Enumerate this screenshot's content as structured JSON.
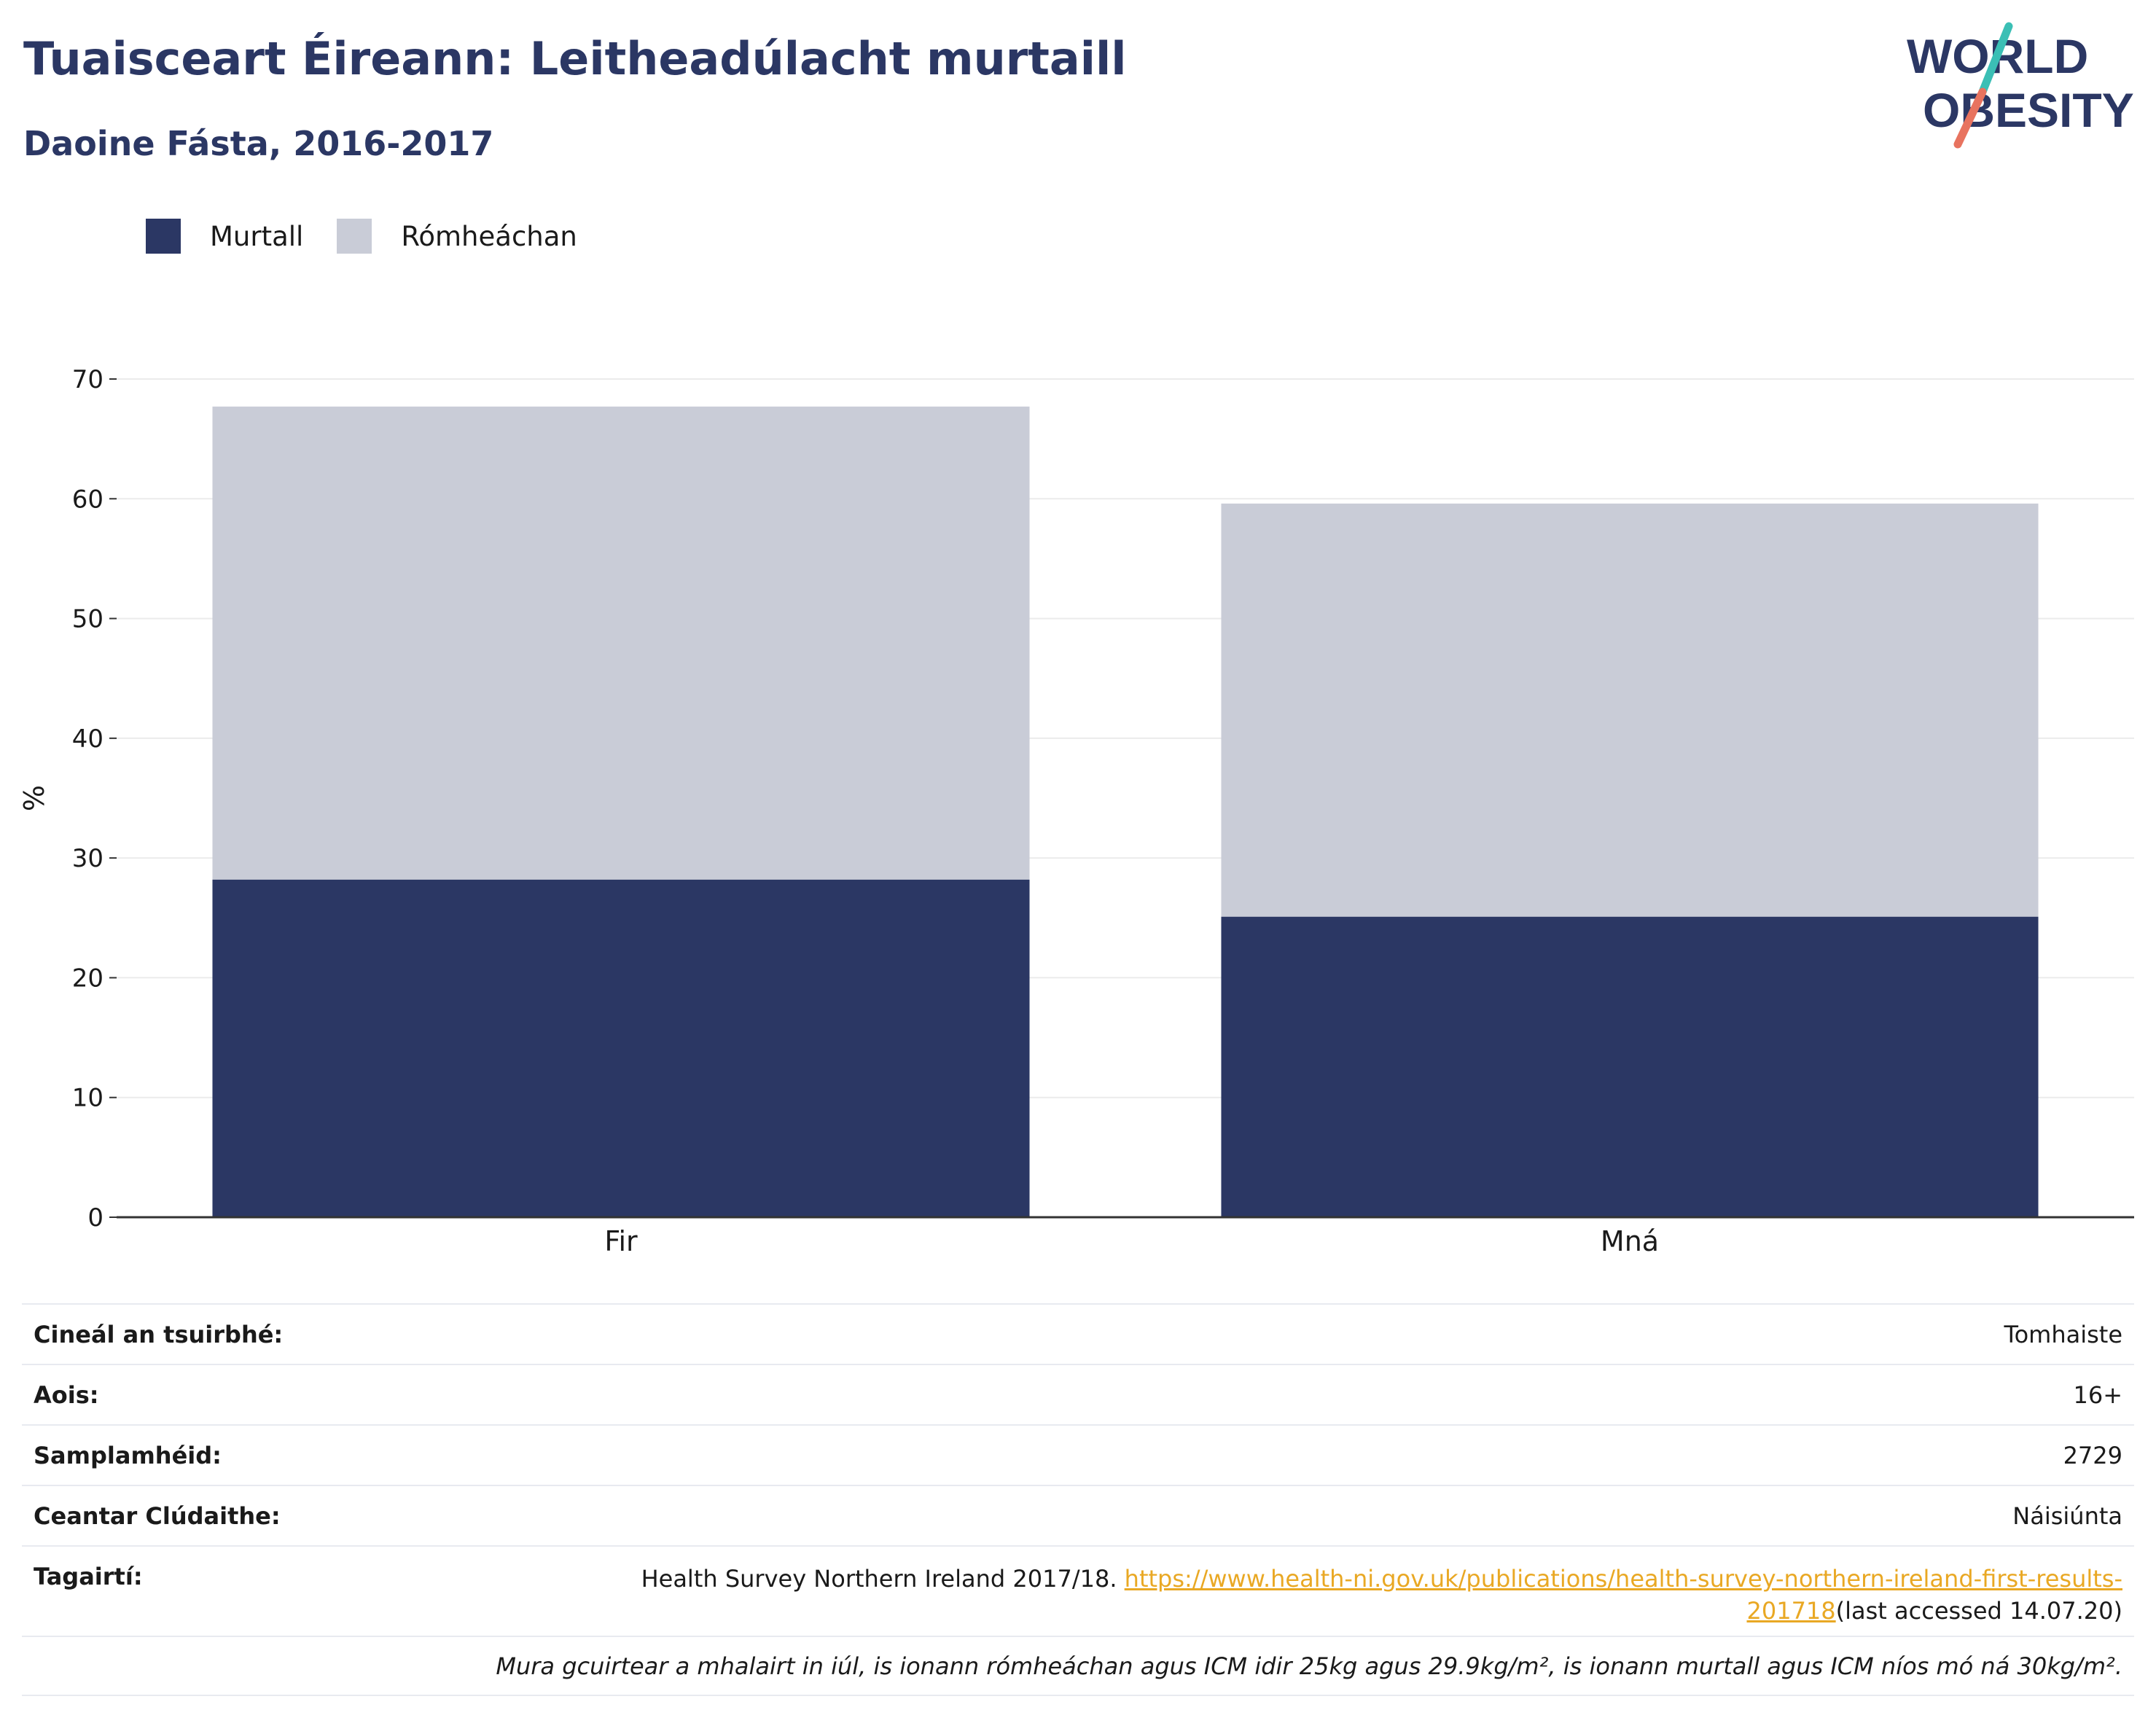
{
  "header": {
    "title": "Tuaisceart Éireann: Leitheadúlacht murtaill",
    "subtitle": "Daoine Fásta, 2016-2017"
  },
  "logo": {
    "line1": "WORLD",
    "line2": "OBESITY",
    "accent_colors": [
      "#3bbfb5",
      "#e8735f"
    ]
  },
  "legend": [
    {
      "label": "Murtall",
      "color": "#2b3764"
    },
    {
      "label": "Rómheáchan",
      "color": "#c9ccd7"
    }
  ],
  "chart_data": {
    "type": "bar",
    "stacked": true,
    "categories": [
      "Fir",
      "Mná"
    ],
    "series": [
      {
        "name": "Murtall",
        "color": "#2b3764",
        "values": [
          28.2,
          25.1
        ]
      },
      {
        "name": "Rómheáchan",
        "color": "#c9ccd7",
        "values": [
          39.5,
          34.5
        ]
      }
    ],
    "ylabel": "%",
    "ylim": [
      0,
      70
    ],
    "yticks": [
      0,
      10,
      20,
      30,
      40,
      50,
      60,
      70
    ],
    "grid": true,
    "legend_position": "top-left"
  },
  "info": {
    "rows": [
      {
        "label": "Cineál an tsuirbhé:",
        "value": "Tomhaiste"
      },
      {
        "label": "Aois:",
        "value": "16+"
      },
      {
        "label": "Samplamhéid:",
        "value": "2729"
      },
      {
        "label": "Ceantar Clúdaithe:",
        "value": "Náisiúnta"
      }
    ],
    "reference": {
      "label": "Tagairtí:",
      "text": "Health Survey Northern Ireland 2017/18. ",
      "link": "https://www.health-ni.gov.uk/publications/health-survey-northern-ireland-first-results-201718",
      "suffix": "(last accessed 14.07.20)"
    },
    "note": "Mura gcuirtear a mhalairt in iúl, is ionann rómheáchan agus ICM idir 25kg agus 29.9kg/m², is ionann murtall agus ICM níos mó ná 30kg/m²."
  }
}
